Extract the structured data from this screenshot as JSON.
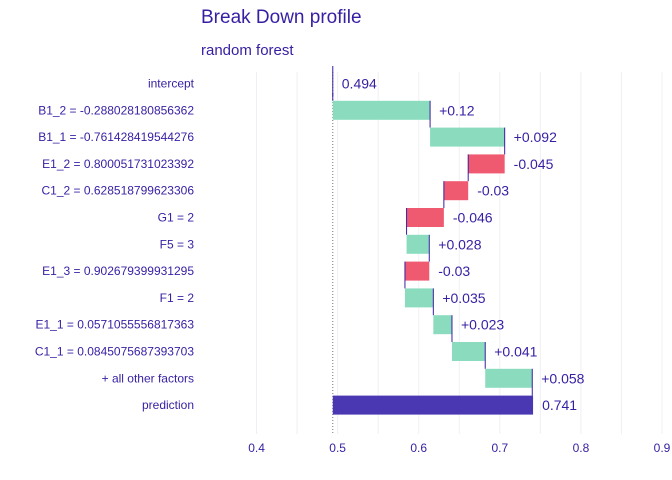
{
  "title": "Break Down profile",
  "subtitle": "random  forest",
  "colors": {
    "positive": "#8bdcbe",
    "negative": "#f05a71",
    "prediction": "#4a37b2",
    "text": "#371ea3",
    "grid": "#f0f0f4",
    "connector": "#371ea3"
  },
  "chart_data": {
    "type": "bar",
    "orientation": "horizontal waterfall",
    "xlim": [
      0.35,
      0.9
    ],
    "xticks": [
      "0.4",
      "0.5",
      "0.6",
      "0.7",
      "0.8",
      "0.9"
    ],
    "baseline": 0.494,
    "grid": true,
    "legend": "none",
    "rows": [
      {
        "label": "intercept",
        "kind": "intercept",
        "start": 0.494,
        "end": 0.494,
        "value_label": "0.494"
      },
      {
        "label": "B1_2 = -0.288028180856362",
        "kind": "positive",
        "start": 0.494,
        "end": 0.614,
        "value_label": "+0.12"
      },
      {
        "label": "B1_1 = -0.761428419544276",
        "kind": "positive",
        "start": 0.614,
        "end": 0.706,
        "value_label": "+0.092"
      },
      {
        "label": "E1_2 = 0.800051731023392",
        "kind": "negative",
        "start": 0.706,
        "end": 0.661,
        "value_label": "-0.045"
      },
      {
        "label": "C1_2 = 0.628518799623306",
        "kind": "negative",
        "start": 0.661,
        "end": 0.631,
        "value_label": "-0.03"
      },
      {
        "label": "G1 = 2",
        "kind": "negative",
        "start": 0.631,
        "end": 0.585,
        "value_label": "-0.046"
      },
      {
        "label": "F5 = 3",
        "kind": "positive",
        "start": 0.585,
        "end": 0.613,
        "value_label": "+0.028"
      },
      {
        "label": "E1_3 = 0.902679399931295",
        "kind": "negative",
        "start": 0.613,
        "end": 0.583,
        "value_label": "-0.03"
      },
      {
        "label": "F1 = 2",
        "kind": "positive",
        "start": 0.583,
        "end": 0.618,
        "value_label": "+0.035"
      },
      {
        "label": "E1_1 = 0.0571055556817363",
        "kind": "positive",
        "start": 0.618,
        "end": 0.641,
        "value_label": "+0.023"
      },
      {
        "label": "C1_1 = 0.0845075687393703",
        "kind": "positive",
        "start": 0.641,
        "end": 0.682,
        "value_label": "+0.041"
      },
      {
        "label": "+ all other factors",
        "kind": "positive",
        "start": 0.682,
        "end": 0.74,
        "value_label": "+0.058"
      },
      {
        "label": "prediction",
        "kind": "prediction",
        "start": 0.494,
        "end": 0.741,
        "value_label": "0.741"
      }
    ]
  }
}
